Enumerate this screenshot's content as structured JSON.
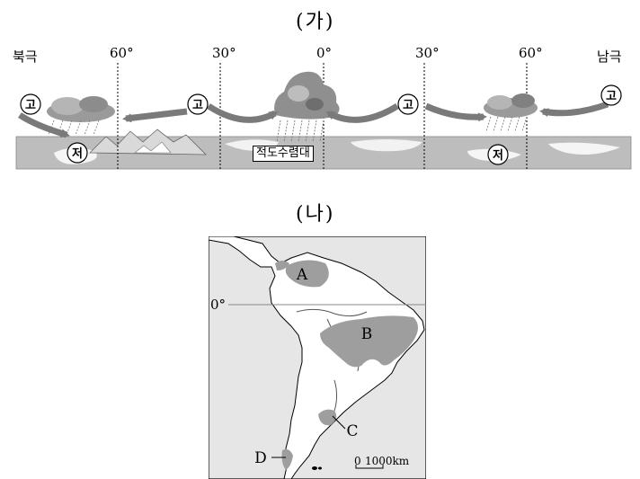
{
  "panel_a": {
    "title": "(가)",
    "north_pole": "북극",
    "south_pole": "남극",
    "latitudes": [
      "60°",
      "30°",
      "0°",
      "30°",
      "60°"
    ],
    "high_pressure": "고",
    "low_pressure": "저",
    "itcz_label": "적도수렴대"
  },
  "panel_b": {
    "title": "(나)",
    "equator_label": "0°",
    "regions": [
      "A",
      "B",
      "C",
      "D"
    ],
    "scale_zero": "0",
    "scale_value": "1000km"
  },
  "colors": {
    "ground": "#bdbdbd",
    "arrow": "#7a7a7a",
    "region": "#9e9e9e",
    "ocean": "#e6e6e6"
  }
}
